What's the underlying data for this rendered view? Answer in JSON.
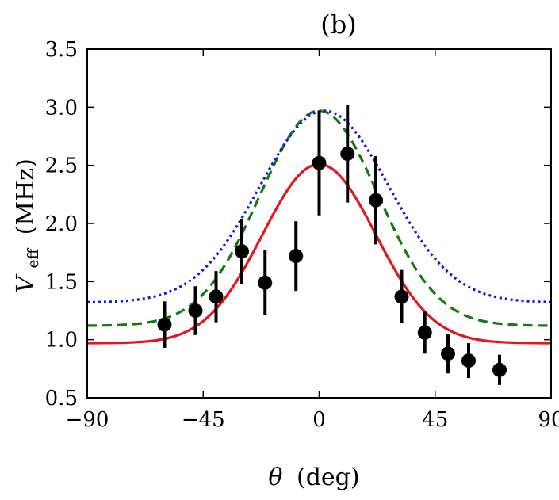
{
  "chart_data": {
    "type": "scatter",
    "title": "(b)",
    "xlabel": {
      "symbol": "θ",
      "unit": "(deg)"
    },
    "ylabel": {
      "symbol": "V",
      "subscript": "eff",
      "unit": "(MHz)"
    },
    "xlim": [
      -90,
      90
    ],
    "ylim": [
      0.5,
      3.5
    ],
    "xticks": [
      -90,
      -45,
      0,
      45,
      90
    ],
    "xtick_labels": [
      "−90",
      "−45",
      "0",
      "45",
      "90"
    ],
    "yticks": [
      0.5,
      1.0,
      1.5,
      2.0,
      2.5,
      3.0,
      3.5
    ],
    "ytick_labels": [
      "0.5",
      "1.0",
      "1.5",
      "2.0",
      "2.5",
      "3.0",
      "3.5"
    ],
    "grid": false,
    "points": {
      "color": "#000000",
      "x": [
        -60,
        -48,
        -40,
        -30,
        -21,
        -9,
        0,
        11,
        22,
        32,
        41,
        50,
        58,
        70
      ],
      "y": [
        1.13,
        1.25,
        1.37,
        1.76,
        1.49,
        1.72,
        2.52,
        2.6,
        2.2,
        1.37,
        1.06,
        0.88,
        0.82,
        0.74
      ],
      "err": [
        0.2,
        0.21,
        0.22,
        0.28,
        0.28,
        0.3,
        0.45,
        0.42,
        0.38,
        0.23,
        0.18,
        0.17,
        0.15,
        0.13
      ]
    },
    "curves": [
      {
        "style": "solid",
        "color": "#e8141c",
        "baseline": 0.97,
        "peak": 2.51,
        "center": 0,
        "sigma": 22
      },
      {
        "style": "dashed",
        "color": "#117a11",
        "baseline": 1.12,
        "peak": 2.97,
        "center": 0,
        "sigma": 23
      },
      {
        "style": "dotted",
        "color": "#1515e6",
        "baseline": 1.32,
        "peak": 2.97,
        "center": 2,
        "sigma": 25
      }
    ]
  }
}
